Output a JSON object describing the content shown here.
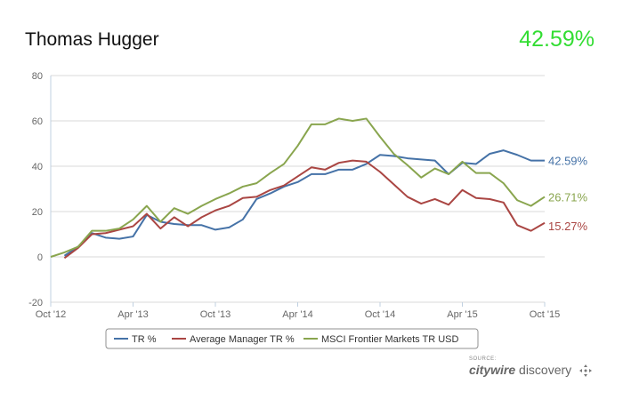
{
  "header": {
    "title": "Thomas Hugger",
    "value": "42.59%",
    "value_color": "#33dd33"
  },
  "source": {
    "caption": "SOURCE:",
    "brand_strong": "citywire",
    "brand_rest": " discovery",
    "icon": "crosshair-icon"
  },
  "chart_data": {
    "type": "line",
    "title": "",
    "xlabel": "",
    "ylabel": "",
    "x_range": [
      "Oct '12",
      "Oct '15"
    ],
    "x_ticks": [
      "Oct '12",
      "Apr '13",
      "Oct '13",
      "Apr '14",
      "Oct '14",
      "Apr '15",
      "Oct '15"
    ],
    "ylim": [
      -20,
      80
    ],
    "y_ticks": [
      -20,
      0,
      20,
      40,
      60,
      80
    ],
    "grid": "horizontal",
    "legend_position": "bottom",
    "months": [
      "Oct '12",
      "Nov '12",
      "Dec '12",
      "Jan '13",
      "Feb '13",
      "Mar '13",
      "Apr '13",
      "May '13",
      "Jun '13",
      "Jul '13",
      "Aug '13",
      "Sep '13",
      "Oct '13",
      "Nov '13",
      "Dec '13",
      "Jan '14",
      "Feb '14",
      "Mar '14",
      "Apr '14",
      "May '14",
      "Jun '14",
      "Jul '14",
      "Aug '14",
      "Sep '14",
      "Oct '14",
      "Nov '14",
      "Dec '14",
      "Jan '15",
      "Feb '15",
      "Mar '15",
      "Apr '15",
      "May '15",
      "Jun '15",
      "Jul '15",
      "Aug '15",
      "Sep '15",
      "Oct '15"
    ],
    "series": [
      {
        "name": "TR %",
        "color": "#4572a7",
        "end_label": "42.59%",
        "values": [
          null,
          0.5,
          4.5,
          10.5,
          8.5,
          8,
          9,
          18.5,
          15.5,
          14.5,
          14,
          14,
          12,
          13,
          16.5,
          25.5,
          28,
          31,
          33,
          36.5,
          36.5,
          38.5,
          38.5,
          41,
          45,
          44.5,
          43.5,
          43,
          42.5,
          36.5,
          41.5,
          41,
          45.5,
          47,
          45,
          42.5,
          42.5
        ]
      },
      {
        "name": "Average Manager TR %",
        "color": "#aa4643",
        "end_label": "15.27%",
        "values": [
          null,
          -0.5,
          4,
          10,
          10.5,
          12,
          13.5,
          19,
          12.5,
          17.5,
          13.5,
          17.5,
          20.5,
          22.5,
          26,
          26.5,
          29.5,
          31.5,
          35.5,
          39.5,
          38.5,
          41.5,
          42.5,
          42,
          37.5,
          32,
          26.5,
          23.5,
          25.5,
          23,
          29.5,
          26,
          25.5,
          24,
          14,
          11.5,
          15
        ]
      },
      {
        "name": "MSCI Frontier Markets TR USD",
        "color": "#89a54e",
        "end_label": "26.71%",
        "values": [
          0,
          2,
          4.5,
          11.5,
          11.5,
          12.5,
          16.5,
          22.5,
          15.5,
          21.5,
          19,
          22.5,
          25.5,
          28,
          31,
          32.5,
          37,
          41,
          49,
          58.5,
          58.5,
          61,
          60,
          61,
          53,
          45.5,
          40.5,
          35,
          39,
          36.5,
          42,
          37,
          37,
          32.5,
          25,
          22.5,
          26.5
        ]
      }
    ]
  }
}
